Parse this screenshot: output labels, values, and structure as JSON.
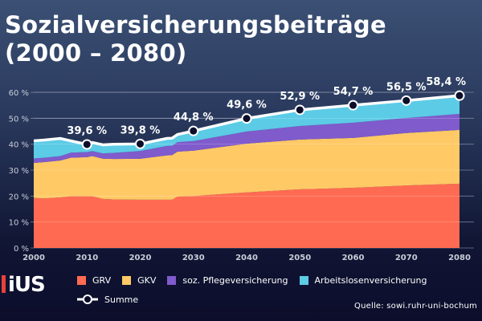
{
  "title_line1": "Sozialversicherungsbeiträge",
  "title_line2": "(2000 – 2080)",
  "logo_text": "iUS",
  "source": "Quelle: sowi.ruhr-uni-bochum",
  "chart_data": {
    "type": "area",
    "stacked": true,
    "title": "Sozialversicherungsbeiträge (2000 – 2080)",
    "xlim": [
      2000,
      2080
    ],
    "ylim": [
      0,
      60
    ],
    "x_ticks": [
      2000,
      2010,
      2020,
      2030,
      2040,
      2050,
      2060,
      2070,
      2080
    ],
    "y_ticks": [
      0,
      10,
      20,
      30,
      40,
      50,
      60
    ],
    "y_tick_labels": [
      "0 %",
      "10 %",
      "20 %",
      "30 %",
      "40 %",
      "50 %",
      "60 %"
    ],
    "grid": true,
    "legend_position": "bottom",
    "x": [
      2000,
      2002,
      2005,
      2007,
      2010,
      2011,
      2013,
      2015,
      2020,
      2025,
      2026,
      2027,
      2030,
      2040,
      2050,
      2060,
      2070,
      2080
    ],
    "series": [
      {
        "name": "GRV",
        "color": "#ff6b52",
        "values": [
          19.3,
          19.1,
          19.5,
          19.9,
          19.9,
          19.9,
          18.9,
          18.7,
          18.6,
          18.6,
          18.6,
          19.8,
          20.0,
          21.4,
          22.6,
          23.2,
          24.1,
          24.8
        ]
      },
      {
        "name": "GKV",
        "color": "#ffc966",
        "values": [
          13.5,
          14.0,
          14.2,
          14.9,
          15.1,
          15.5,
          15.5,
          15.6,
          15.75,
          17.1,
          17.2,
          17.3,
          17.5,
          18.8,
          19.2,
          19.2,
          20.2,
          20.7
        ]
      },
      {
        "name": "soz. Pflegeversicherung",
        "color": "#7f5bcc",
        "values": [
          1.7,
          1.7,
          1.7,
          1.95,
          1.95,
          1.95,
          2.05,
          2.35,
          3.05,
          3.6,
          3.6,
          3.7,
          3.7,
          4.7,
          5.2,
          5.9,
          5.8,
          6.2
        ]
      },
      {
        "name": "Arbeitslosenversicherung",
        "color": "#5ccbe6",
        "values": [
          6.5,
          6.5,
          6.5,
          4.2,
          2.65,
          3.0,
          3.0,
          3.0,
          2.4,
          2.6,
          2.6,
          2.6,
          3.6,
          4.7,
          5.9,
          6.4,
          6.4,
          6.7
        ]
      }
    ],
    "summe": {
      "name": "Summe",
      "x": [
        2010,
        2020,
        2030,
        2040,
        2050,
        2060,
        2070,
        2080
      ],
      "values": [
        39.6,
        39.8,
        44.8,
        49.6,
        52.9,
        54.7,
        56.5,
        58.4
      ],
      "labels": [
        "39,6 %",
        "39,8 %",
        "44,8 %",
        "49,6 %",
        "52,9 %",
        "54,7 %",
        "56,5 %",
        "58,4 %"
      ]
    }
  }
}
